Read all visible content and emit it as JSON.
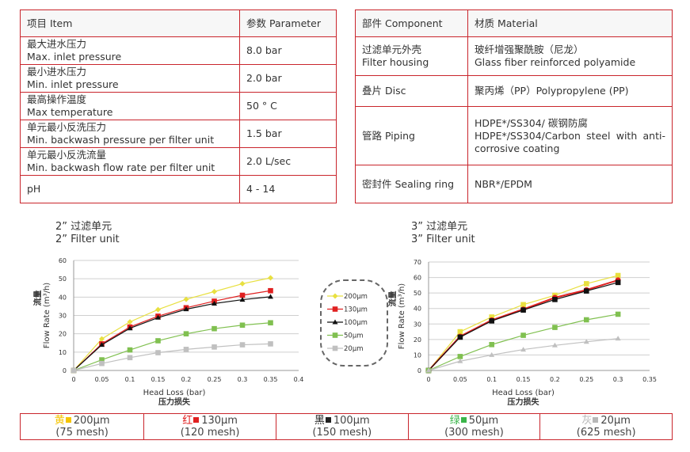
{
  "spec_table": {
    "headers": [
      "项目 Item",
      "参数 Parameter"
    ],
    "rows": [
      {
        "item_cn": "最大进水压力",
        "item_en": "Max. inlet pressure",
        "value": "8.0 bar"
      },
      {
        "item_cn": "最小进水压力",
        "item_en": "Min. inlet pressure",
        "value": "2.0 bar"
      },
      {
        "item_cn": "最高操作温度",
        "item_en": "Max temperature",
        "value": "50 ° C"
      },
      {
        "item_cn": "单元最小反洗压力",
        "item_en": "Min. backwash pressure per filter unit",
        "value": "1.5 bar"
      },
      {
        "item_cn": "单元最小反洗流量",
        "item_en": "Min. backwash flow rate per filter unit",
        "value": "2.0 L/sec"
      },
      {
        "item_cn": "",
        "item_en": "pH",
        "value": "4 - 14"
      }
    ]
  },
  "material_table": {
    "headers": [
      "部件 Component",
      "材质 Material"
    ],
    "rows": [
      {
        "component_cn": "过滤单元外壳",
        "component_en": "Filter housing",
        "material_1": "玻纤增强聚酰胺（尼龙）",
        "material_2": "Glass fiber reinforced polyamide"
      },
      {
        "component_cn": "",
        "component_en": "叠片 Disc",
        "material_1": "聚丙烯（PP）Polypropylene (PP)",
        "material_2": ""
      },
      {
        "component_cn": "",
        "component_en": "管路 Piping",
        "material_1": "HDPE*/SS304/ 碳钢防腐",
        "material_2": "HDPE*/SS304/Carbon steel with anti-corrosive coating"
      },
      {
        "component_cn": "",
        "component_en": "密封件 Sealing ring",
        "material_1": "NBR*/EPDM",
        "material_2": ""
      }
    ]
  },
  "chart_data": [
    {
      "type": "line",
      "title": "2” 过滤单元",
      "subtitle": "2” Filter unit",
      "xlabel": "Head Loss (bar)",
      "xlabel_cn": "压力损失",
      "ylabel": "Flow Rate (m³/h)",
      "ylabel_cn": "流量",
      "xlim": [
        0,
        0.4
      ],
      "ylim": [
        0,
        60
      ],
      "xticks": [
        "0",
        "0.05",
        "0.1",
        "0.15",
        "0.2",
        "0.25",
        "0.3",
        "0.35",
        "0.4"
      ],
      "yticks": [
        "0",
        "10",
        "20",
        "30",
        "40",
        "50",
        "60"
      ],
      "grid": "horizontal",
      "legend": "right",
      "x": [
        0,
        0.05,
        0.1,
        0.15,
        0.2,
        0.25,
        0.3,
        0.35
      ],
      "series": [
        {
          "name": "200μm",
          "color": "#e8e040",
          "marker": "diamond",
          "values": [
            0,
            17.2,
            26.5,
            33.2,
            38.8,
            43,
            47.3,
            50.5
          ]
        },
        {
          "name": "130μm",
          "color": "#e02020",
          "marker": "square",
          "values": [
            0,
            14.5,
            23.7,
            29.6,
            34.2,
            37.8,
            41,
            43.5
          ]
        },
        {
          "name": "100μm",
          "color": "#111111",
          "marker": "triangle",
          "values": [
            0,
            14,
            23,
            28.8,
            33.4,
            36.5,
            38.6,
            40.2
          ]
        },
        {
          "name": "50μm",
          "color": "#80c050",
          "marker": "square",
          "values": [
            0,
            5.8,
            11.2,
            16.2,
            20,
            22.8,
            24.7,
            26
          ]
        },
        {
          "name": "20μm",
          "color": "#c0c0c0",
          "marker": "square",
          "values": [
            0,
            3.8,
            7,
            9.7,
            11.5,
            12.8,
            14,
            14.5
          ]
        }
      ]
    },
    {
      "type": "line",
      "title": "3” 过滤单元",
      "subtitle": "3” Filter unit",
      "xlabel": "Head Loss (bar)",
      "xlabel_cn": "压力损失",
      "ylabel": "Flow Rate (m³/h)",
      "ylabel_cn": "流量",
      "xlim": [
        0,
        0.35
      ],
      "ylim": [
        0,
        70
      ],
      "xticks": [
        "0",
        "0.05",
        "0.1",
        "0.15",
        "0.2",
        "0.25",
        "0.3",
        "0.35"
      ],
      "yticks": [
        "0",
        "10",
        "20",
        "30",
        "40",
        "50",
        "60",
        "70"
      ],
      "grid": "horizontal",
      "x": [
        0,
        0.05,
        0.1,
        0.15,
        0.2,
        0.25,
        0.3
      ],
      "series": [
        {
          "color": "#e8e040",
          "marker": "square",
          "values": [
            0,
            25,
            34.5,
            42.5,
            48.5,
            56,
            61.3
          ]
        },
        {
          "color": "#e02020",
          "marker": "circle",
          "values": [
            0,
            22,
            32.5,
            39.5,
            47,
            52,
            58.3
          ]
        },
        {
          "color": "#111111",
          "marker": "square",
          "values": [
            0,
            21.5,
            32,
            39,
            45.8,
            51.3,
            56.8
          ]
        },
        {
          "color": "#80c050",
          "marker": "square",
          "values": [
            0,
            9,
            16.7,
            22.7,
            27.8,
            32.7,
            36.3
          ]
        },
        {
          "color": "#c0c0c0",
          "marker": "triangle",
          "values": [
            0,
            6,
            10,
            13.5,
            16.2,
            18.5,
            20.6
          ]
        }
      ]
    }
  ],
  "mesh_legend": [
    {
      "color_cn": "黄",
      "color": "#f5c400",
      "size": "200μm",
      "mesh": "(75 mesh)"
    },
    {
      "color_cn": "红",
      "color": "#e02020",
      "size": "130μm",
      "mesh": "(120 mesh)"
    },
    {
      "color_cn": "黑",
      "color": "#222222",
      "size": "100μm",
      "mesh": "(150 mesh)"
    },
    {
      "color_cn": "绿",
      "color": "#3bb54a",
      "size": "50μm",
      "mesh": "(300 mesh)"
    },
    {
      "color_cn": "灰",
      "color": "#b8b8b8",
      "size": "20μm",
      "mesh": "(625 mesh)"
    }
  ]
}
